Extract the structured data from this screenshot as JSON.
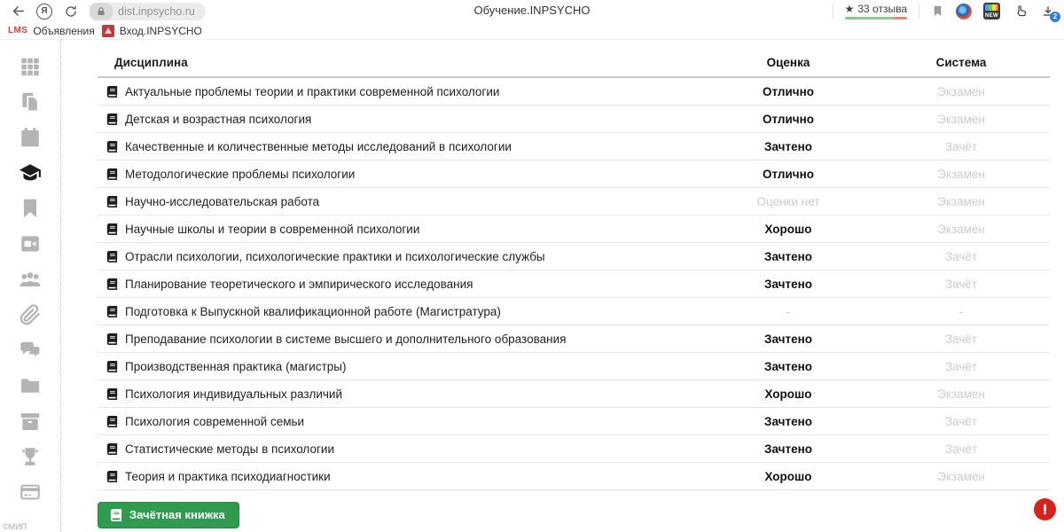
{
  "browser": {
    "url": "dist.inpsycho.ru",
    "page_title": "Обучение.INPSYCHO",
    "reviews_label": "33 отзыва",
    "star_glyph": "★",
    "yandex_letter": "Я",
    "new_badge": "NEW",
    "downloads_badge": "2"
  },
  "bookmarks": {
    "lms_logo": "LMS",
    "announcements_label": "Объявления",
    "login_label": "Вход.INPSYCHO"
  },
  "sidebar": {
    "items": [
      {
        "icon": "dashboard-grid",
        "active": false
      },
      {
        "icon": "documents",
        "active": false
      },
      {
        "icon": "calendar",
        "active": false
      },
      {
        "icon": "graduation-cap",
        "active": true
      },
      {
        "icon": "bookmark",
        "active": false
      },
      {
        "icon": "video",
        "active": false
      },
      {
        "icon": "people",
        "active": false
      },
      {
        "icon": "paperclip",
        "active": false
      },
      {
        "icon": "chat",
        "active": false
      },
      {
        "icon": "folder",
        "active": false
      },
      {
        "icon": "archive-box",
        "active": false
      },
      {
        "icon": "trophy",
        "active": false
      },
      {
        "icon": "credit-card",
        "active": false
      }
    ],
    "footer": "©МИП"
  },
  "table": {
    "headers": {
      "discipline": "Дисциплина",
      "grade": "Оценка",
      "system": "Система"
    },
    "rows": [
      {
        "discipline": "Актуальные проблемы теории и практики современной психологии",
        "grade": "Отлично",
        "grade_muted": false,
        "system": "Экзамен"
      },
      {
        "discipline": "Детская и возрастная психология",
        "grade": "Отлично",
        "grade_muted": false,
        "system": "Экзамен"
      },
      {
        "discipline": "Качественные и количественные методы исследований в психологии",
        "grade": "Зачтено",
        "grade_muted": false,
        "system": "Зачёт"
      },
      {
        "discipline": "Методологические проблемы психологии",
        "grade": "Отлично",
        "grade_muted": false,
        "system": "Экзамен"
      },
      {
        "discipline": "Научно-исследовательская работа",
        "grade": "Оценки нет",
        "grade_muted": true,
        "system": "Экзамен"
      },
      {
        "discipline": "Научные школы и теории в современной психологии",
        "grade": "Хорошо",
        "grade_muted": false,
        "system": "Экзамен"
      },
      {
        "discipline": "Отрасли психологии, психологические практики и психологические службы",
        "grade": "Зачтено",
        "grade_muted": false,
        "system": "Зачёт"
      },
      {
        "discipline": "Планирование теоретического и эмпирического исследования",
        "grade": "Зачтено",
        "grade_muted": false,
        "system": "Зачёт"
      },
      {
        "discipline": "Подготовка к Выпускной квалификационной работе (Магистратура)",
        "grade": "-",
        "grade_muted": true,
        "system": "-"
      },
      {
        "discipline": "Преподавание психологии в системе высшего и дополнительного образования",
        "grade": "Зачтено",
        "grade_muted": false,
        "system": "Зачёт"
      },
      {
        "discipline": "Производственная практика (магистры)",
        "grade": "Зачтено",
        "grade_muted": false,
        "system": "Зачёт"
      },
      {
        "discipline": "Психология индивидуальных различий",
        "grade": "Хорошо",
        "grade_muted": false,
        "system": "Экзамен"
      },
      {
        "discipline": "Психология современной семьи",
        "grade": "Зачтено",
        "grade_muted": false,
        "system": "Зачёт"
      },
      {
        "discipline": "Статистические методы в психологии",
        "grade": "Зачтено",
        "grade_muted": false,
        "system": "Зачёт"
      },
      {
        "discipline": "Теория и практика психодиагностики",
        "grade": "Хорошо",
        "grade_muted": false,
        "system": "Экзамен"
      }
    ]
  },
  "footer": {
    "gradebook_button": "Зачётная книжка"
  },
  "colors": {
    "accent_green": "#2e9b4e",
    "alert_red": "#d6221c",
    "lms_red": "#e03a3a",
    "review_green": "#8cc890",
    "review_red": "#ee8273",
    "muted_text": "#cccccc"
  }
}
